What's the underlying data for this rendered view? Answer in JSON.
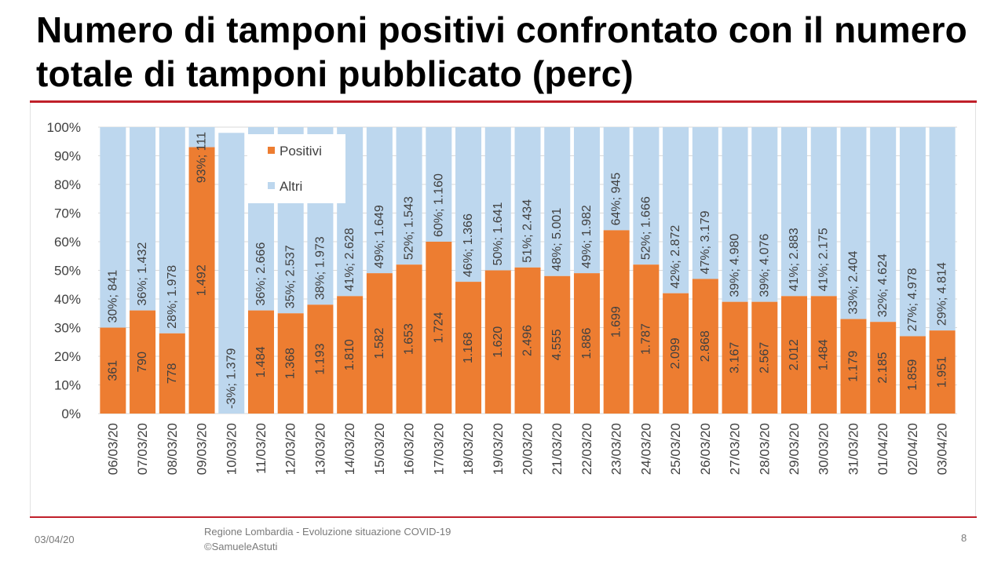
{
  "slide": {
    "title": "Numero di tamponi positivi confrontato con il numero totale di tamponi pubblicato (perc)",
    "footer_date": "03/04/20",
    "footer_source_line1": "Regione Lombardia - Evoluzione situazione COVID-19",
    "footer_source_line2": "©SamueleAstuti",
    "page_number": "8"
  },
  "colors": {
    "positivi": "#ed7d31",
    "altri": "#bdd7ee",
    "grid": "#d9d9d9",
    "text": "#404040",
    "rule": "#c0202a"
  },
  "chart_data": {
    "type": "bar",
    "stacked": true,
    "percent_stacked": true,
    "title": "",
    "xlabel": "",
    "ylabel": "",
    "ylim": [
      0,
      100
    ],
    "y_ticks": [
      "0%",
      "10%",
      "20%",
      "30%",
      "40%",
      "50%",
      "60%",
      "70%",
      "80%",
      "90%",
      "100%"
    ],
    "legend": {
      "placement": "top-left",
      "entries": [
        "Positivi",
        "Altri"
      ]
    },
    "categories": [
      "06/03/20",
      "07/03/20",
      "08/03/20",
      "09/03/20",
      "10/03/20",
      "11/03/20",
      "12/03/20",
      "13/03/20",
      "14/03/20",
      "15/03/20",
      "16/03/20",
      "17/03/20",
      "18/03/20",
      "19/03/20",
      "20/03/20",
      "21/03/20",
      "22/03/20",
      "23/03/20",
      "24/03/20",
      "25/03/20",
      "26/03/20",
      "27/03/20",
      "28/03/20",
      "29/03/20",
      "30/03/20",
      "31/03/20",
      "01/04/20",
      "02/04/20",
      "03/04/20"
    ],
    "series": [
      {
        "name": "Positivi",
        "percent": [
          30,
          36,
          28,
          93,
          -3,
          36,
          35,
          38,
          41,
          49,
          52,
          60,
          46,
          50,
          51,
          48,
          49,
          64,
          52,
          42,
          47,
          39,
          39,
          41,
          41,
          33,
          32,
          27,
          29
        ],
        "labels": [
          "361",
          "790",
          "778",
          "1.492",
          "",
          "1.484",
          "1.368",
          "1.193",
          "1.810",
          "1.582",
          "1.653",
          "1.724",
          "1.168",
          "1.620",
          "2.496",
          "4.555",
          "1.886",
          "1.699",
          "1.787",
          "2.099",
          "2.868",
          "3.167",
          "2.567",
          "2.012",
          "1.484",
          "1.179",
          "2.185",
          "1.859",
          "1.951"
        ]
      },
      {
        "name": "Altri",
        "percent": [
          70,
          64,
          72,
          7,
          98,
          64,
          65,
          62,
          59,
          51,
          48,
          40,
          54,
          50,
          49,
          52,
          51,
          36,
          48,
          58,
          53,
          61,
          61,
          59,
          59,
          67,
          68,
          73,
          71
        ],
        "labels": [
          "30%; 841",
          "36%; 1.432",
          "28%; 1.978",
          "93%; 111",
          "-3%; 1.379",
          "36%; 2.666",
          "35%; 2.537",
          "38%; 1.973",
          "41%; 2.628",
          "49%; 1.649",
          "52%; 1.543",
          "60%; 1.160",
          "46%; 1.366",
          "50%; 1.641",
          "51%; 2.434",
          "48%; 5.001",
          "49%; 1.982",
          "64%; 945",
          "52%; 1.666",
          "42%; 2.872",
          "47%; 3.179",
          "39%; 4.980",
          "39%; 4.076",
          "41%; 2.883",
          "41%; 2.175",
          "33%; 2.404",
          "32%; 4.624",
          "27%; 4.978",
          "29%; 4.814"
        ]
      }
    ]
  }
}
